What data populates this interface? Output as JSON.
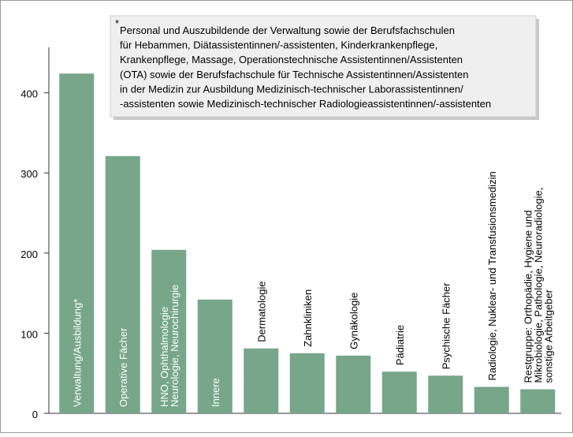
{
  "chart_data": {
    "type": "bar",
    "categories": [
      [
        "Verwaltung/Ausbildung*"
      ],
      [
        "Operative Fächer"
      ],
      [
        "HNO, Ophthalmologie",
        "Neurologie, Neurochirurgie"
      ],
      [
        "Innere"
      ],
      [
        "Dermatologie"
      ],
      [
        "Zahnkliniken"
      ],
      [
        "Gynäkologie"
      ],
      [
        "Pädiatrie"
      ],
      [
        "Psychische Fächer"
      ],
      [
        "Radiologie, Nuklear- und Transfusionsmedizin"
      ],
      [
        "Restgruppe: Orthopädie, Hygiene und",
        "Mikrobiologie, Pathologie, Neuroradiologie,",
        "sonstige Arbeitgeber"
      ]
    ],
    "values": [
      424,
      321,
      204,
      142,
      81,
      75,
      72,
      52,
      47,
      33,
      30
    ],
    "color": "#77a68a",
    "ylim": [
      0,
      440
    ],
    "yticks": [
      0,
      100,
      200,
      300,
      400
    ],
    "note_marker": "*",
    "note": [
      "Personal und Auszubildende der Verwaltung sowie der Berufsfachschulen",
      "für Hebammen, Diätassistentinnen/-assistenten, Kinderkrankenpflege,",
      "Krankenpflege, Massage, Operationstechnische Assistentinnen/Assistenten",
      "(OTA) sowie der Berufsfachschule für Technische Assistentinnen/Assistenten",
      "in der Medizin zur Ausbildung Medizinisch-technischer Laborassistentinnen/",
      "-assistenten sowie Medizinisch-technischer Radiologieassistentinnen/-assistenten"
    ]
  }
}
